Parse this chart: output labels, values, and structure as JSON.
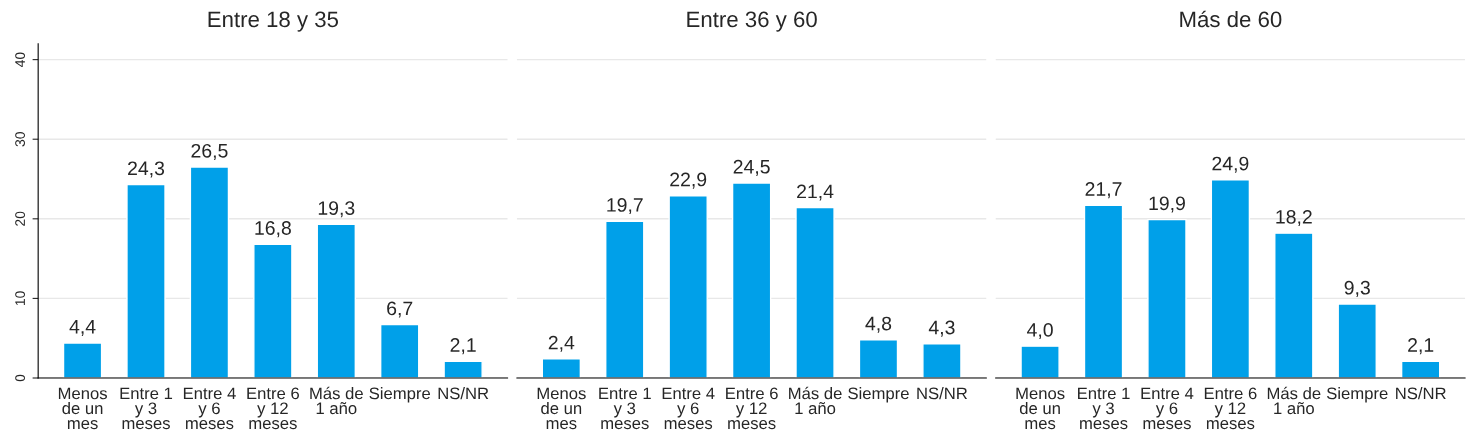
{
  "chart_data": [
    {
      "type": "bar",
      "title": "Entre 18 y 35",
      "categories": [
        "Menos\nde un\nmes",
        "Entre 1\ny 3\nmeses",
        "Entre 4\ny 6\nmeses",
        "Entre 6\ny 12\nmeses",
        "Más de\n1 año",
        "Siempre",
        "NS/NR"
      ],
      "values": [
        4.4,
        24.3,
        26.5,
        16.8,
        19.3,
        6.7,
        2.1
      ],
      "value_labels": [
        "4,4",
        "24,3",
        "26,5",
        "16,8",
        "19,3",
        "6,7",
        "2,1"
      ],
      "color": "#00a0e9",
      "ylim": [
        0,
        42
      ],
      "yticks": [
        0,
        10,
        20,
        30,
        40
      ],
      "grid": "y"
    },
    {
      "type": "bar",
      "title": "Entre 36 y 60",
      "categories": [
        "Menos\nde un\nmes",
        "Entre 1\ny 3\nmeses",
        "Entre 4\ny 6\nmeses",
        "Entre 6\ny 12\nmeses",
        "Más de\n1 año",
        "Siempre",
        "NS/NR"
      ],
      "values": [
        2.4,
        19.7,
        22.9,
        24.5,
        21.4,
        4.8,
        4.3
      ],
      "value_labels": [
        "2,4",
        "19,7",
        "22,9",
        "24,5",
        "21,4",
        "4,8",
        "4,3"
      ],
      "color": "#00a0e9",
      "yticks": [
        0,
        10,
        20,
        30,
        40
      ],
      "grid": "y",
      "tick_labels": "x"
    },
    {
      "type": "bar",
      "title": "Más de 60",
      "categories": [
        "Menos\nde un\nmes",
        "Entre 1\ny 3\nmeses",
        "Entre 4\ny 6\nmeses",
        "Entre 6\ny 12\nmeses",
        "Más de\n1 año",
        "Siempre",
        "NS/NR"
      ],
      "values": [
        4.0,
        21.7,
        19.9,
        24.9,
        18.2,
        9.3,
        2.1
      ],
      "value_labels": [
        "4,0",
        "21,7",
        "19,9",
        "24,9",
        "18,2",
        "9,3",
        "2,1"
      ],
      "color": "#00a0e9",
      "yticks": [
        0,
        10,
        20,
        30,
        40
      ],
      "grid": "y",
      "tick_labels": "x"
    }
  ]
}
